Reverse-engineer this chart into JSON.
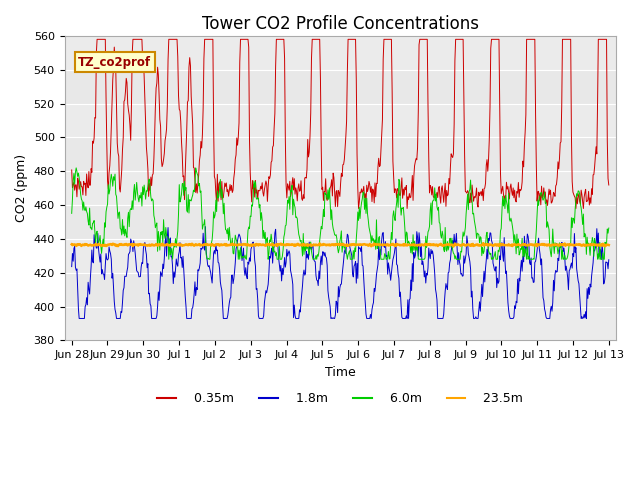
{
  "title": "Tower CO2 Profile Concentrations",
  "xlabel": "Time",
  "ylabel": "CO2 (ppm)",
  "ylim": [
    380,
    560
  ],
  "label_box_text": "TZ_co2prof",
  "series": {
    "0.35m": {
      "color": "#cc0000",
      "label": "0.35m"
    },
    "1.8m": {
      "color": "#0000cc",
      "label": "1.8m"
    },
    "6.0m": {
      "color": "#00cc00",
      "label": "6.0m"
    },
    "23.5m": {
      "color": "#ffa500",
      "label": "23.5m"
    }
  },
  "flat_value": 436.5,
  "xtick_labels": [
    "Jun 28",
    "Jun 29",
    "Jun 30",
    "Jul 1",
    "Jul 2",
    "Jul 3",
    "Jul 4",
    "Jul 5",
    "Jul 6",
    "Jul 7",
    "Jul 8",
    "Jul 9",
    "Jul 10",
    "Jul 11",
    "Jul 12",
    "Jul 13"
  ],
  "background_color": "#ffffff",
  "plot_bg_color": "#e8e8e8",
  "band_color": "#d8d8d8",
  "title_fontsize": 12,
  "axis_label_fontsize": 9,
  "tick_fontsize": 8,
  "legend_fontsize": 9
}
